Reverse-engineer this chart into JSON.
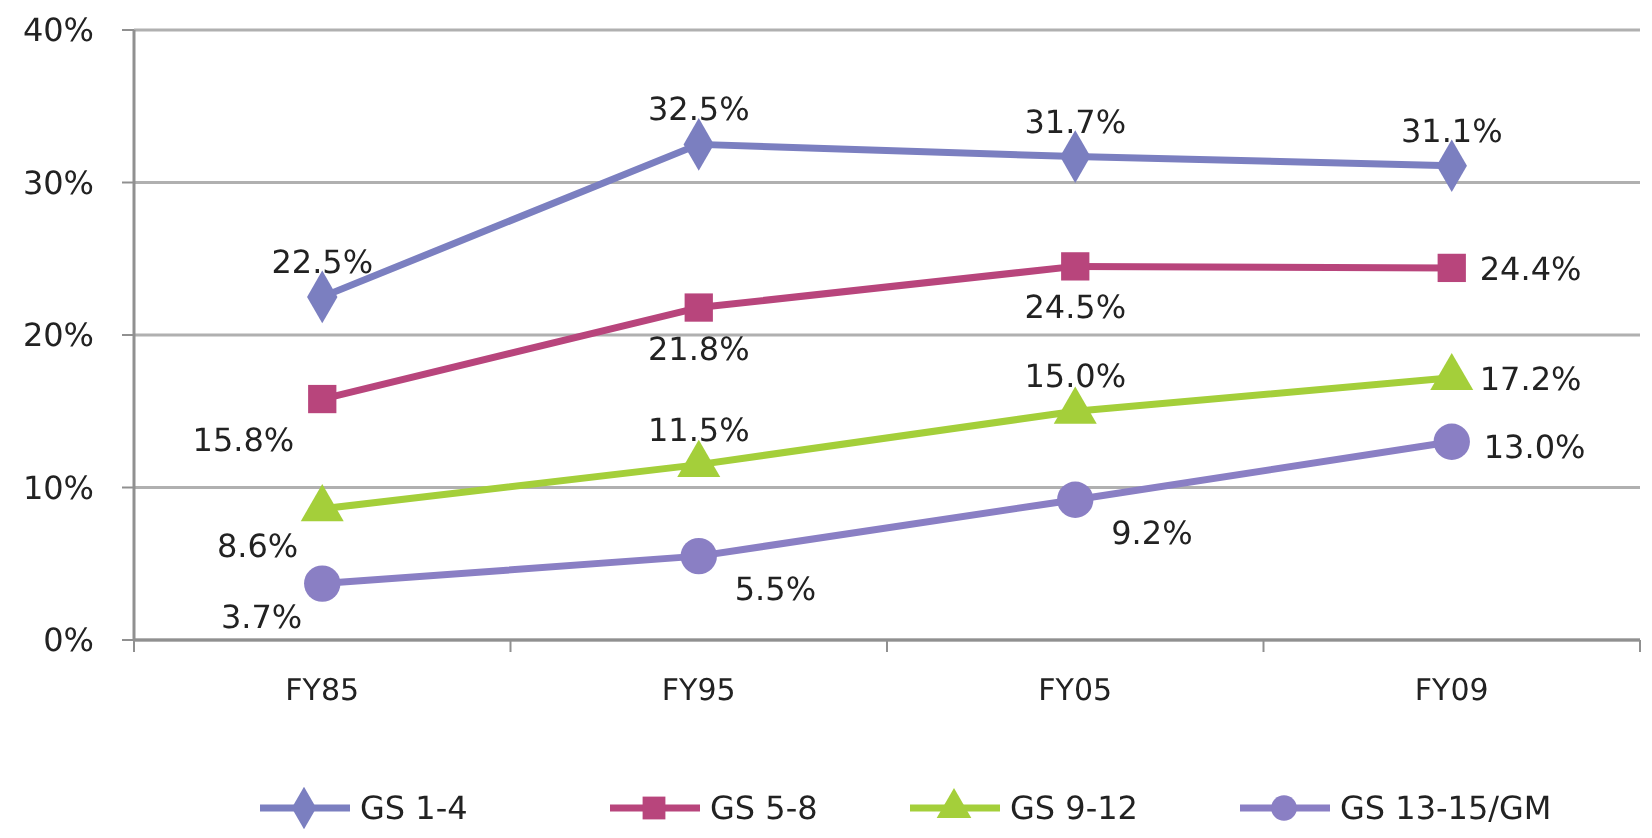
{
  "chart_data": {
    "type": "line",
    "categories": [
      "FY85",
      "FY95",
      "FY05",
      "FY09"
    ],
    "series": [
      {
        "name": "GS 1-4",
        "color": "#7b7fc0",
        "marker": "diamond",
        "values": [
          22.5,
          32.5,
          31.7,
          31.1
        ],
        "value_labels": [
          "22.5%",
          "32.5%",
          "31.7%",
          "31.1%"
        ]
      },
      {
        "name": "GS 5-8",
        "color": "#b8457c",
        "marker": "square",
        "values": [
          15.8,
          21.8,
          24.5,
          24.4
        ],
        "value_labels": [
          "15.8%",
          "21.8%",
          "24.5%",
          "24.4%"
        ]
      },
      {
        "name": "GS 9-12",
        "color": "#a4cf3a",
        "marker": "triangle",
        "values": [
          8.6,
          11.5,
          15.0,
          17.2
        ],
        "value_labels": [
          "8.6%",
          "11.5%",
          "15.0%",
          "17.2%"
        ]
      },
      {
        "name": "GS 13-15/GM",
        "color": "#8a7fc4",
        "marker": "circle",
        "values": [
          3.7,
          5.5,
          9.2,
          13.0
        ],
        "value_labels": [
          "3.7%",
          "5.5%",
          "9.2%",
          "13.0%"
        ]
      }
    ],
    "ylim": [
      0,
      40
    ],
    "yticks": [
      {
        "value": 0,
        "label": "0%"
      },
      {
        "value": 10,
        "label": "10%"
      },
      {
        "value": 20,
        "label": "20%"
      },
      {
        "value": 30,
        "label": "30%"
      },
      {
        "value": 40,
        "label": "40%"
      }
    ],
    "grid": "y",
    "legend": "bottom",
    "line_style": "solid"
  }
}
